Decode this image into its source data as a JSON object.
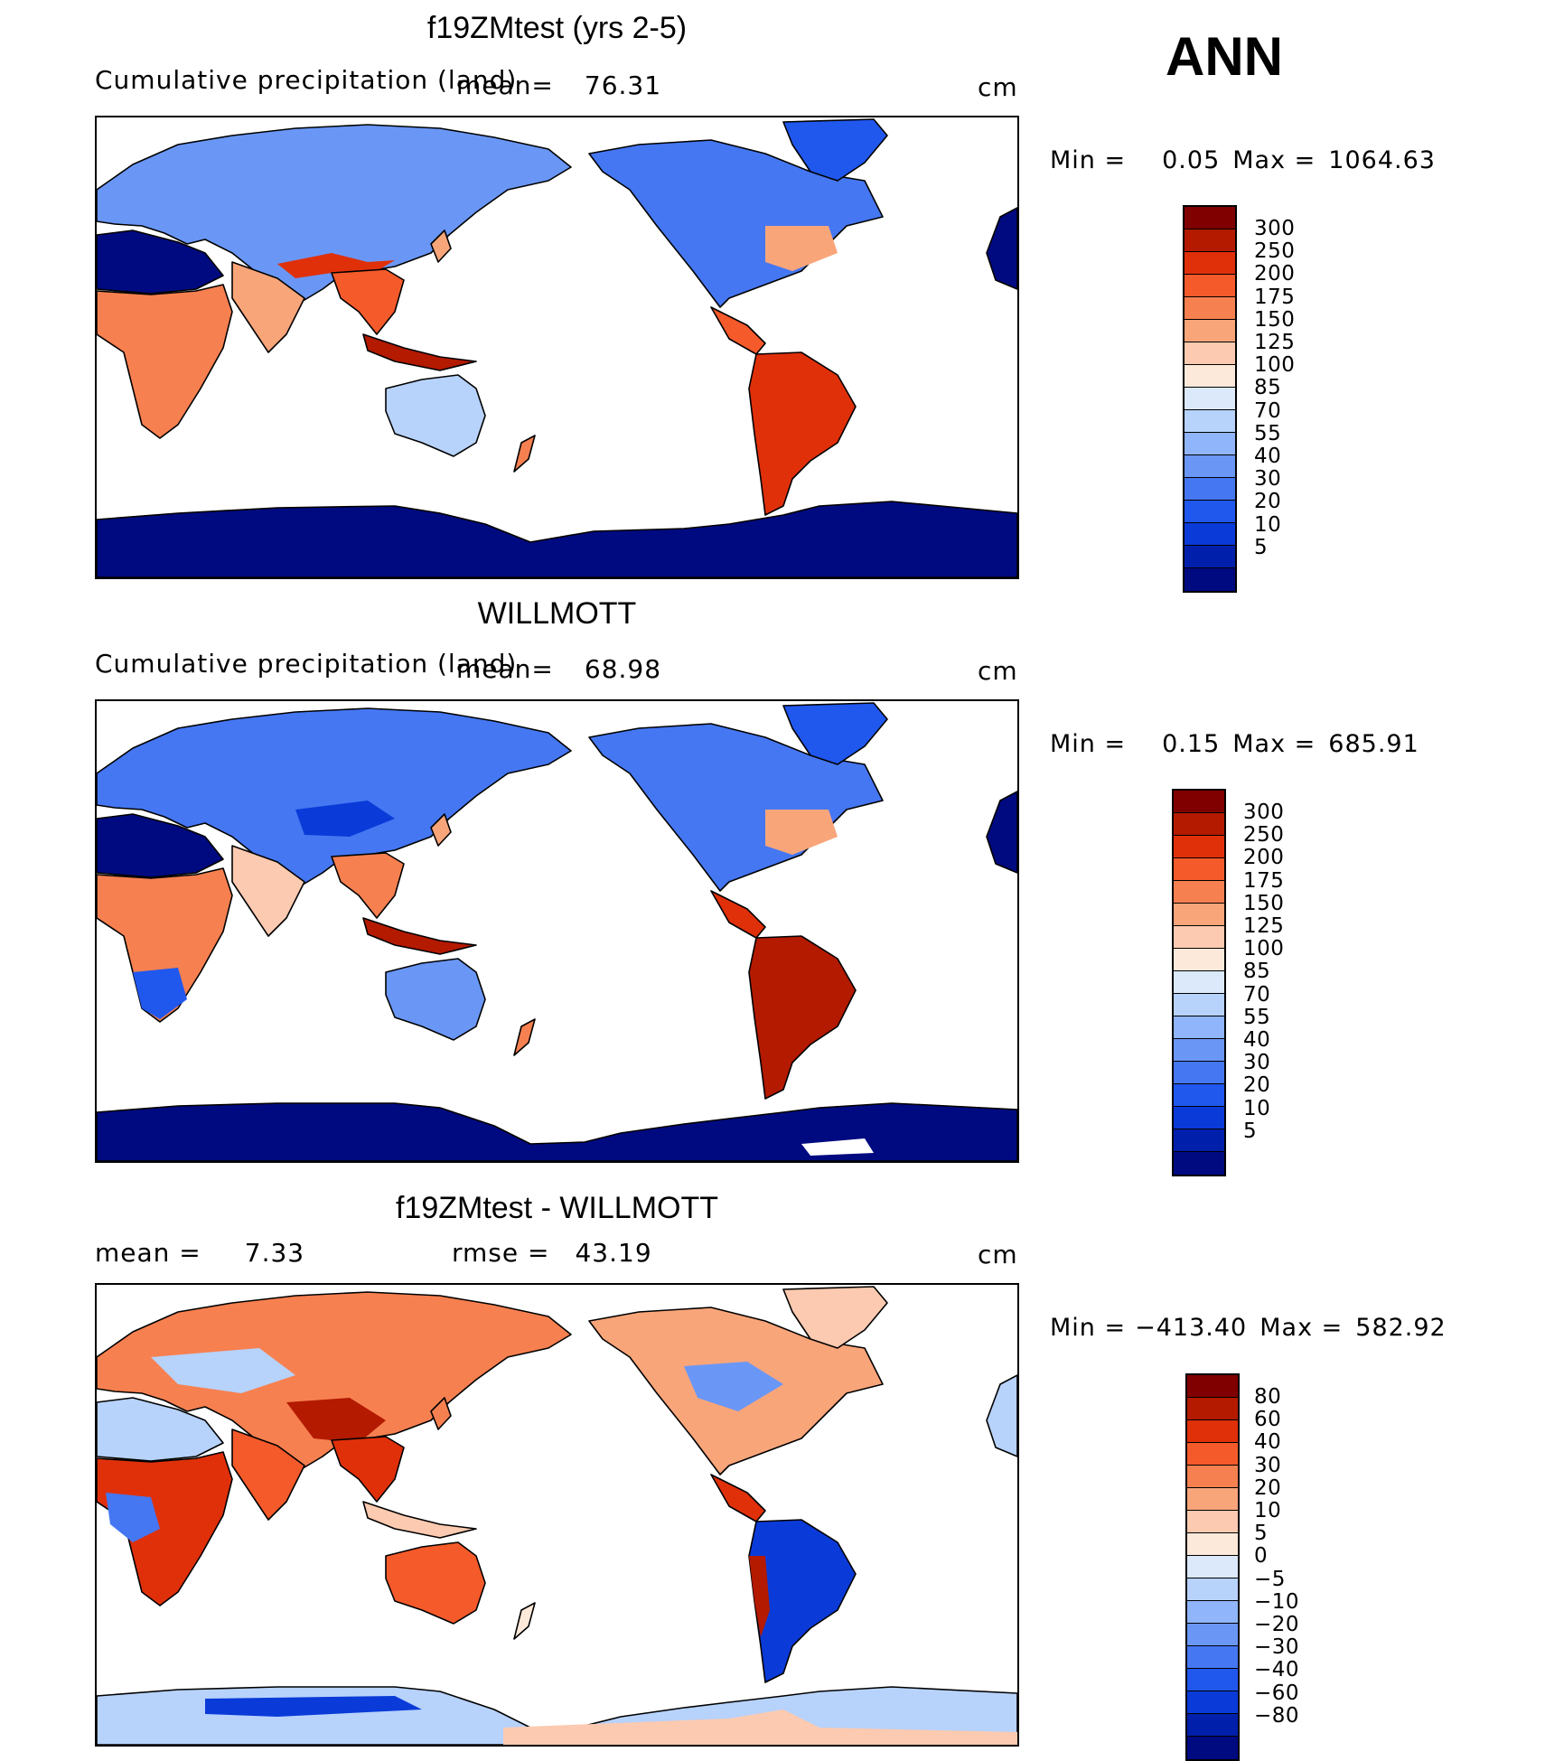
{
  "season": "ANN",
  "colors": {
    "precip": [
      "#800000",
      "#b31a00",
      "#e0300a",
      "#f55a2a",
      "#f78050",
      "#f9a57a",
      "#fccab0",
      "#fde9da",
      "#dbe9fb",
      "#b7d2fb",
      "#90b5fa",
      "#6a97f6",
      "#4577f2",
      "#2058ee",
      "#0a3bd8",
      "#0020ac",
      "#000a80"
    ],
    "diff": [
      "#800000",
      "#b31a00",
      "#e0300a",
      "#f55a2a",
      "#f78050",
      "#f9a57a",
      "#fccab0",
      "#fde9da",
      "#dbe9fb",
      "#b7d2fb",
      "#90b5fa",
      "#6a97f6",
      "#4577f2",
      "#2058ee",
      "#0a3bd8",
      "#0020ac",
      "#000a80"
    ]
  },
  "panels": [
    {
      "id": "model",
      "title": "f19ZMtest (yrs 2-5)",
      "variable": "Cumulative precipitation (land)",
      "mean_label": "mean=",
      "mean": "76.31",
      "units": "cm",
      "min_label": "Min =",
      "min": "0.05",
      "max_label": "Max =",
      "max": "1064.63",
      "levels": [
        "300",
        "250",
        "200",
        "175",
        "150",
        "125",
        "100",
        "85",
        "70",
        "55",
        "40",
        "30",
        "20",
        "10",
        "5"
      ]
    },
    {
      "id": "obs",
      "title": "WILLMOTT",
      "variable": "Cumulative precipitation (land)",
      "mean_label": "mean=",
      "mean": "68.98",
      "units": "cm",
      "min_label": "Min =",
      "min": "0.15",
      "max_label": "Max =",
      "max": "685.91",
      "levels": [
        "300",
        "250",
        "200",
        "175",
        "150",
        "125",
        "100",
        "85",
        "70",
        "55",
        "40",
        "30",
        "20",
        "10",
        "5"
      ]
    },
    {
      "id": "diff",
      "title": "f19ZMtest - WILLMOTT",
      "mean_label": "mean =",
      "mean": "7.33",
      "rmse_label": "rmse =",
      "rmse": "43.19",
      "units": "cm",
      "min_label": "Min =",
      "min": "−413.40",
      "max_label": "Max =",
      "max": "582.92",
      "levels": [
        "80",
        "60",
        "40",
        "30",
        "20",
        "10",
        "5",
        "0",
        "−5",
        "−10",
        "−20",
        "−30",
        "−40",
        "−60",
        "−80"
      ]
    }
  ]
}
